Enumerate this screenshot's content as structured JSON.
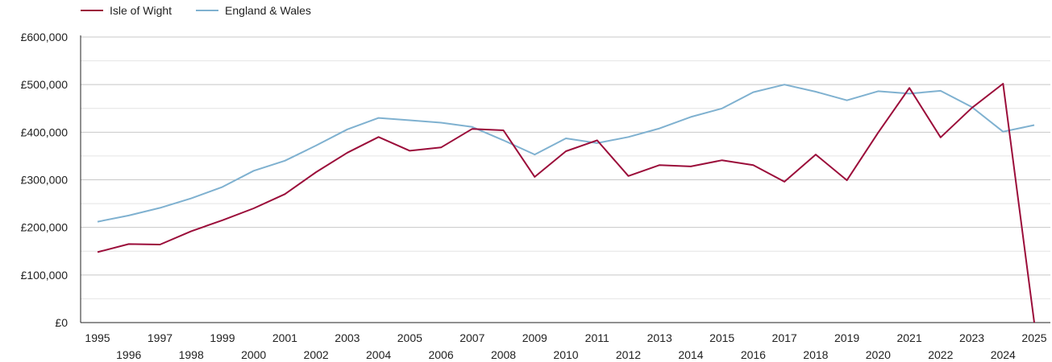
{
  "chart_data": {
    "type": "line",
    "title": "",
    "xlabel": "",
    "ylabel": "",
    "ylim": [
      0,
      600000
    ],
    "yticks": [
      0,
      100000,
      200000,
      300000,
      400000,
      500000,
      600000
    ],
    "ytick_labels": [
      "£0",
      "£100,000",
      "£200,000",
      "£300,000",
      "£400,000",
      "£500,000",
      "£600,000"
    ],
    "x": [
      1995,
      1996,
      1997,
      1998,
      1999,
      2000,
      2001,
      2002,
      2003,
      2004,
      2005,
      2006,
      2007,
      2008,
      2009,
      2010,
      2011,
      2012,
      2013,
      2014,
      2015,
      2016,
      2017,
      2018,
      2019,
      2020,
      2021,
      2022,
      2023,
      2024,
      2025
    ],
    "xtick_labels": [
      "1995",
      "1996",
      "1997",
      "1998",
      "1999",
      "2000",
      "2001",
      "2002",
      "2003",
      "2004",
      "2005",
      "2006",
      "2007",
      "2008",
      "2009",
      "2010",
      "2011",
      "2012",
      "2013",
      "2014",
      "2015",
      "2016",
      "2017",
      "2018",
      "2019",
      "2020",
      "2021",
      "2022",
      "2023",
      "2024",
      "2025"
    ],
    "legend_position": "top-left",
    "series": [
      {
        "name": "Isle of Wight",
        "color": "#9b0d3a",
        "values": [
          148000,
          165000,
          164000,
          192000,
          215000,
          240000,
          270000,
          316000,
          357000,
          390000,
          361000,
          368000,
          407000,
          404000,
          306000,
          360000,
          383000,
          308000,
          331000,
          328000,
          341000,
          331000,
          296000,
          353000,
          299000,
          399000,
          493000,
          389000,
          451000,
          502000,
          0
        ]
      },
      {
        "name": "England & Wales",
        "color": "#7fb1d0",
        "values": [
          212000,
          225000,
          241000,
          261000,
          285000,
          319000,
          340000,
          372000,
          406000,
          430000,
          425000,
          420000,
          411000,
          383000,
          353000,
          387000,
          377000,
          390000,
          408000,
          432000,
          450000,
          484000,
          500000,
          485000,
          467000,
          486000,
          481000,
          487000,
          453000,
          401000,
          415000
        ]
      }
    ]
  }
}
